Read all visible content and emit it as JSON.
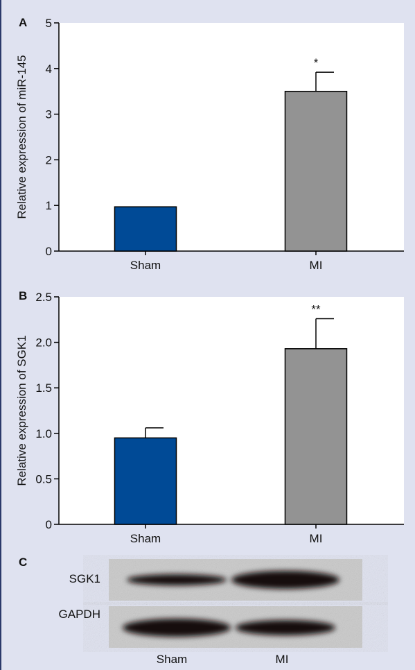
{
  "chart_data": [
    {
      "type": "bar",
      "panel_label": "A",
      "y_label": "Relative expression of miR-145",
      "categories": [
        "Sham",
        "MI"
      ],
      "values": [
        0.97,
        3.5
      ],
      "errors": [
        0,
        0.42
      ],
      "colors": [
        "#004a96",
        "#939393"
      ],
      "annotations": [
        {
          "x": "MI",
          "text": "*"
        }
      ],
      "ylim": [
        0,
        5
      ],
      "yticks": [
        0,
        1,
        2,
        3,
        4,
        5
      ]
    },
    {
      "type": "bar",
      "panel_label": "B",
      "y_label": "Relative expression of SGK1",
      "categories": [
        "Sham",
        "MI"
      ],
      "values": [
        0.95,
        1.93
      ],
      "errors": [
        0.11,
        0.33
      ],
      "colors": [
        "#004a96",
        "#939393"
      ],
      "annotations": [
        {
          "x": "MI",
          "text": "**"
        }
      ],
      "ylim": [
        0,
        2.5
      ],
      "yticks": [
        0,
        0.5,
        {
          "value": 1,
          "label": "1.0"
        },
        1.5,
        {
          "value": 2,
          "label": "2.0"
        },
        2.5
      ]
    }
  ],
  "blot": {
    "panel_label": "C",
    "rows": [
      "SGK1",
      "GAPDH"
    ],
    "columns": [
      "Sham",
      "MI"
    ]
  }
}
